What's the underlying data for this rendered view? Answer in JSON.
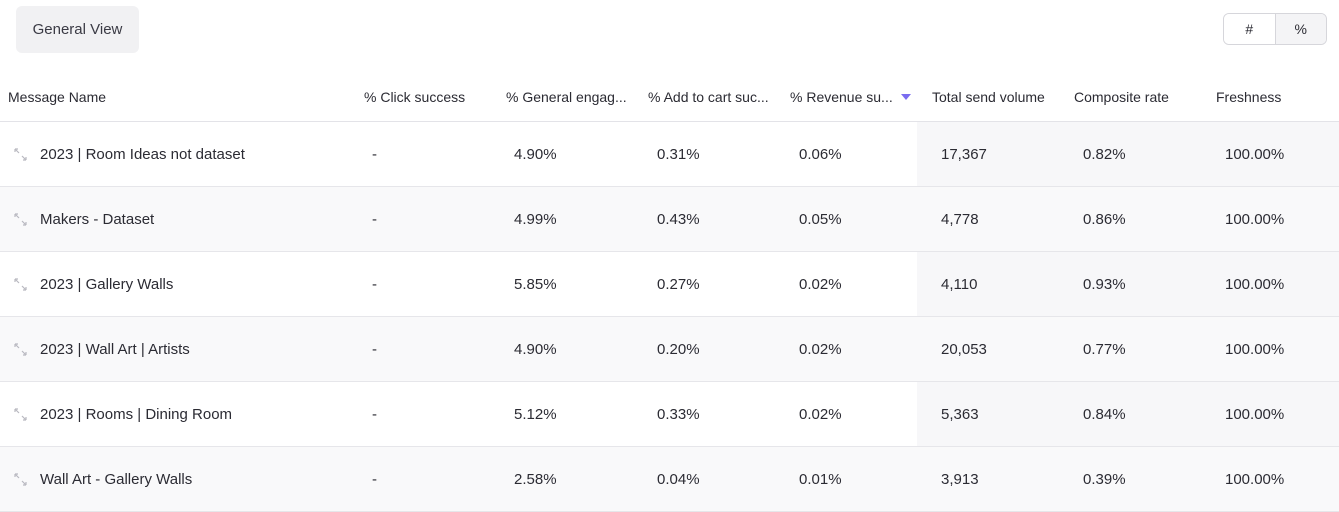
{
  "toolbar": {
    "view_label": "General View",
    "toggle": {
      "count_label": "#",
      "percent_label": "%"
    }
  },
  "table": {
    "columns": [
      "Message Name",
      "% Click success",
      "% General engag...",
      "% Add to cart suc...",
      "% Revenue su...",
      "Total send volume",
      "Composite rate",
      "Freshness"
    ],
    "sorted_column": "% Revenue su...",
    "rows": [
      {
        "name": "2023 | Room Ideas not dataset",
        "click": "-",
        "engagement": "4.90%",
        "add_to_cart": "0.31%",
        "revenue": "0.06%",
        "send_volume": "17,367",
        "composite": "0.82%",
        "freshness": "100.00%"
      },
      {
        "name": "Makers - Dataset",
        "click": "-",
        "engagement": "4.99%",
        "add_to_cart": "0.43%",
        "revenue": "0.05%",
        "send_volume": "4,778",
        "composite": "0.86%",
        "freshness": "100.00%"
      },
      {
        "name": "2023 | Gallery Walls",
        "click": "-",
        "engagement": "5.85%",
        "add_to_cart": "0.27%",
        "revenue": "0.02%",
        "send_volume": "4,110",
        "composite": "0.93%",
        "freshness": "100.00%"
      },
      {
        "name": "2023 | Wall Art | Artists",
        "click": "-",
        "engagement": "4.90%",
        "add_to_cart": "0.20%",
        "revenue": "0.02%",
        "send_volume": "20,053",
        "composite": "0.77%",
        "freshness": "100.00%"
      },
      {
        "name": "2023 | Rooms | Dining Room",
        "click": "-",
        "engagement": "5.12%",
        "add_to_cart": "0.33%",
        "revenue": "0.02%",
        "send_volume": "5,363",
        "composite": "0.84%",
        "freshness": "100.00%"
      },
      {
        "name": "Wall Art - Gallery Walls",
        "click": "-",
        "engagement": "2.58%",
        "add_to_cart": "0.04%",
        "revenue": "0.01%",
        "send_volume": "3,913",
        "composite": "0.39%",
        "freshness": "100.00%"
      }
    ]
  },
  "colors": {
    "accent": "#7a6cf0",
    "row_alt": "#f9f9fa",
    "border": "#e6e6ea"
  },
  "icons": {
    "row_expand": "expand-arrows-icon",
    "sort": "sort-descending-icon"
  }
}
